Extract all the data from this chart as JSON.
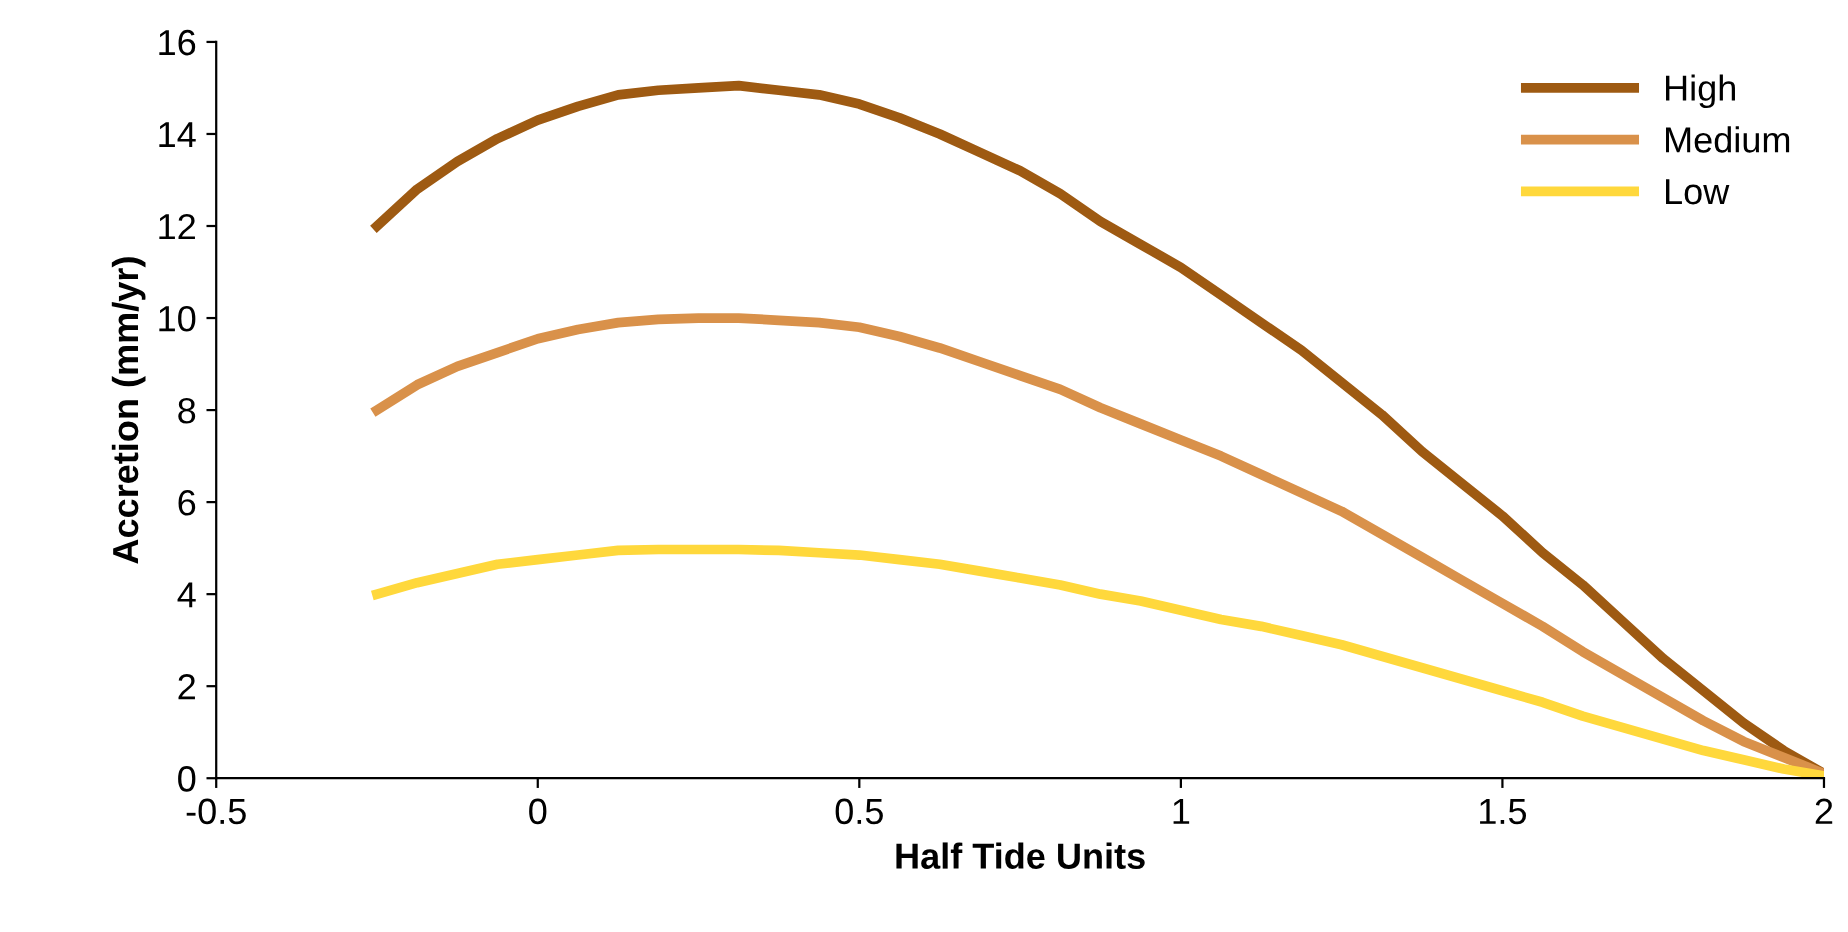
{
  "chart_data": {
    "type": "line",
    "xlabel": "Half Tide Units",
    "ylabel": "Accretion (mm/yr)",
    "x": [
      -0.25,
      -0.1875,
      -0.125,
      -0.0625,
      0,
      0.0625,
      0.125,
      0.1875,
      0.25,
      0.3125,
      0.375,
      0.4375,
      0.5,
      0.5625,
      0.625,
      0.6875,
      0.75,
      0.8125,
      0.875,
      0.9375,
      1,
      1.0625,
      1.125,
      1.1875,
      1.25,
      1.3125,
      1.375,
      1.4375,
      1.5,
      1.5625,
      1.625,
      1.6875,
      1.75,
      1.8125,
      1.875,
      1.9375,
      2
    ],
    "series": [
      {
        "name": "High",
        "color": "#9e5a12",
        "values": [
          12,
          12.8,
          13.4,
          13.9,
          14.3,
          14.6,
          14.85,
          14.95,
          15.0,
          15.05,
          14.95,
          14.85,
          14.65,
          14.35,
          14.0,
          13.6,
          13.2,
          12.7,
          12.1,
          11.6,
          11.1,
          10.5,
          9.9,
          9.3,
          8.6,
          7.9,
          7.1,
          6.4,
          5.7,
          4.9,
          4.2,
          3.4,
          2.6,
          1.9,
          1.2,
          0.6,
          0.1
        ]
      },
      {
        "name": "Medium",
        "color": "#d9914a",
        "values": [
          8,
          8.55,
          8.95,
          9.25,
          9.55,
          9.75,
          9.9,
          9.97,
          10,
          10,
          9.95,
          9.9,
          9.8,
          9.6,
          9.35,
          9.05,
          8.75,
          8.45,
          8.05,
          7.7,
          7.35,
          7.0,
          6.6,
          6.2,
          5.8,
          5.3,
          4.8,
          4.3,
          3.8,
          3.3,
          2.75,
          2.25,
          1.75,
          1.25,
          0.8,
          0.45,
          0.1
        ]
      },
      {
        "name": "Low",
        "color": "#ffd83c",
        "values": [
          4,
          4.25,
          4.45,
          4.65,
          4.75,
          4.85,
          4.95,
          4.97,
          4.97,
          4.97,
          4.95,
          4.9,
          4.85,
          4.75,
          4.65,
          4.5,
          4.35,
          4.2,
          4.0,
          3.85,
          3.65,
          3.45,
          3.3,
          3.1,
          2.9,
          2.65,
          2.4,
          2.15,
          1.9,
          1.65,
          1.35,
          1.1,
          0.85,
          0.6,
          0.4,
          0.2,
          0.05
        ]
      }
    ],
    "xlim": [
      -0.5,
      2
    ],
    "xticks": [
      {
        "value": -0.5,
        "label": "-0.5"
      },
      0,
      0.5,
      1,
      1.5,
      2
    ],
    "ylim": [
      0,
      16
    ],
    "yticks": [
      0,
      2,
      4,
      6,
      8,
      10,
      12,
      14,
      16
    ],
    "grid": false,
    "legend": "top right",
    "marker": "none",
    "line_style": "solid"
  }
}
